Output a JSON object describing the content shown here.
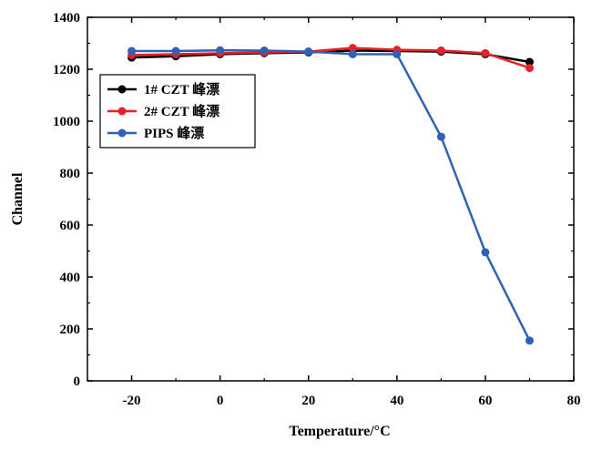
{
  "chart_data": {
    "type": "line",
    "xlabel": "Temperature/°C",
    "ylabel": "Channel",
    "xlim": [
      -30,
      80
    ],
    "ylim": [
      0,
      1400
    ],
    "x_ticks": [
      -20,
      0,
      20,
      40,
      60,
      80
    ],
    "y_ticks": [
      0,
      200,
      400,
      600,
      800,
      1000,
      1200,
      1400
    ],
    "legend_position": "upper-left",
    "grid": false,
    "x": [
      -20,
      -10,
      0,
      10,
      20,
      30,
      40,
      50,
      60,
      70
    ],
    "series": [
      {
        "name": "1# CZT 峰漂",
        "color": "#000000",
        "values": [
          1245,
          1250,
          1258,
          1262,
          1265,
          1272,
          1270,
          1268,
          1258,
          1228
        ]
      },
      {
        "name": "2# CZT 峰漂",
        "color": "#e8202a",
        "values": [
          1255,
          1258,
          1262,
          1265,
          1268,
          1282,
          1275,
          1272,
          1262,
          1205
        ]
      },
      {
        "name": "PIPS 峰漂",
        "color": "#2f62b5",
        "values": [
          1270,
          1270,
          1273,
          1272,
          1268,
          1258,
          1258,
          940,
          495,
          155
        ]
      }
    ]
  }
}
